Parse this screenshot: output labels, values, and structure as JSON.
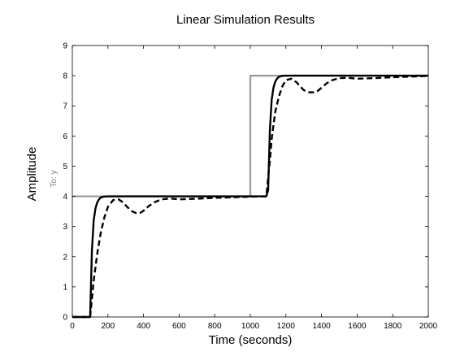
{
  "chart_data": {
    "type": "line",
    "title": "Linear Simulation Results",
    "xlabel": "Time (seconds)",
    "ylabel": "Amplitude",
    "output_label": "To: y",
    "xlim": [
      0,
      2000
    ],
    "ylim": [
      0,
      9
    ],
    "xticks": [
      0,
      200,
      400,
      600,
      800,
      1000,
      1200,
      1400,
      1600,
      1800,
      2000
    ],
    "yticks": [
      0,
      1,
      2,
      3,
      4,
      5,
      6,
      7,
      8,
      9
    ],
    "grid": false,
    "series": [
      {
        "style": "reference",
        "color": "#999999",
        "x": [
          0,
          1000,
          1000,
          2000
        ],
        "y": [
          4,
          4,
          8,
          8
        ]
      },
      {
        "style": "solid",
        "color": "#000000",
        "x": [
          0,
          95,
          100,
          110,
          120,
          130,
          140,
          150,
          160,
          175,
          200,
          250,
          1000,
          1090,
          1100,
          1110,
          1120,
          1130,
          1140,
          1150,
          1160,
          1175,
          1200,
          1250,
          2000
        ],
        "y": [
          0,
          0,
          0,
          2.2,
          3.2,
          3.6,
          3.8,
          3.9,
          3.96,
          3.99,
          4,
          4,
          4,
          4,
          4.2,
          6.2,
          7.2,
          7.6,
          7.8,
          7.9,
          7.96,
          7.99,
          8,
          8,
          8
        ]
      },
      {
        "style": "dashed",
        "color": "#000000",
        "x": [
          0,
          100,
          110,
          120,
          140,
          160,
          180,
          200,
          230,
          260,
          280,
          300,
          330,
          360,
          380,
          400,
          430,
          460,
          500,
          550,
          600,
          700,
          800,
          900,
          1000,
          1090,
          1100,
          1110,
          1120,
          1140,
          1160,
          1180,
          1200,
          1230,
          1260,
          1280,
          1300,
          1330,
          1360,
          1380,
          1400,
          1430,
          1460,
          1500,
          1550,
          1600,
          1700,
          1800,
          1900,
          2000
        ],
        "y": [
          0,
          0,
          0.6,
          1.2,
          2.1,
          2.8,
          3.3,
          3.65,
          3.88,
          3.9,
          3.82,
          3.7,
          3.52,
          3.44,
          3.45,
          3.52,
          3.68,
          3.8,
          3.9,
          3.93,
          3.9,
          3.92,
          3.95,
          3.97,
          3.99,
          4,
          4.6,
          5.2,
          5.9,
          6.8,
          7.3,
          7.65,
          7.85,
          7.9,
          7.78,
          7.65,
          7.52,
          7.45,
          7.45,
          7.5,
          7.6,
          7.75,
          7.85,
          7.92,
          7.93,
          7.9,
          7.92,
          7.95,
          7.97,
          7.99
        ]
      }
    ]
  }
}
